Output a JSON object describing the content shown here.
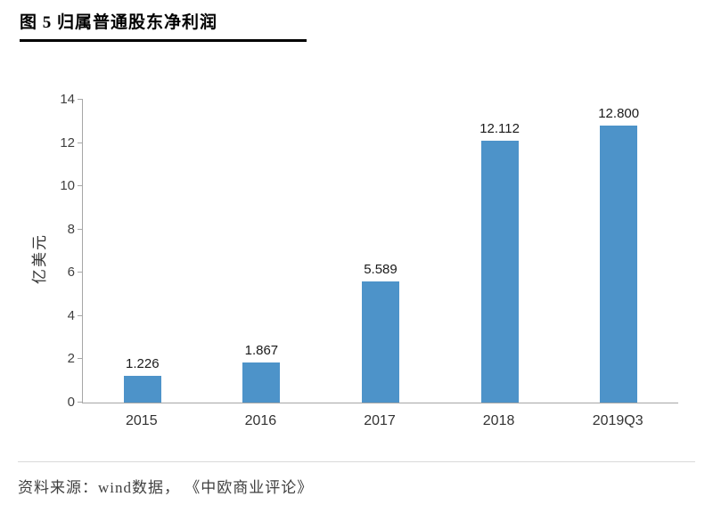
{
  "header": {
    "title": "图 5  归属普通股东净利润"
  },
  "chart_data": {
    "type": "bar",
    "title": "图 5 归属普通股东净利润",
    "categories": [
      "2015",
      "2016",
      "2017",
      "2018",
      "2019Q3"
    ],
    "values": [
      1.226,
      1.867,
      5.589,
      12.112,
      12.8
    ],
    "value_labels": [
      "1.226",
      "1.867",
      "5.589",
      "12.112",
      "12.800"
    ],
    "xlabel": "",
    "ylabel": "亿美元",
    "ylim": [
      0,
      14
    ],
    "yticks": [
      0,
      2,
      4,
      6,
      8,
      10,
      12,
      14
    ],
    "grid": false,
    "legend": "none",
    "bar_color": "#4D93C9",
    "axis_color": "#a6a6a6"
  },
  "footer": {
    "source": "资料来源：wind数据， 《中欧商业评论》"
  }
}
